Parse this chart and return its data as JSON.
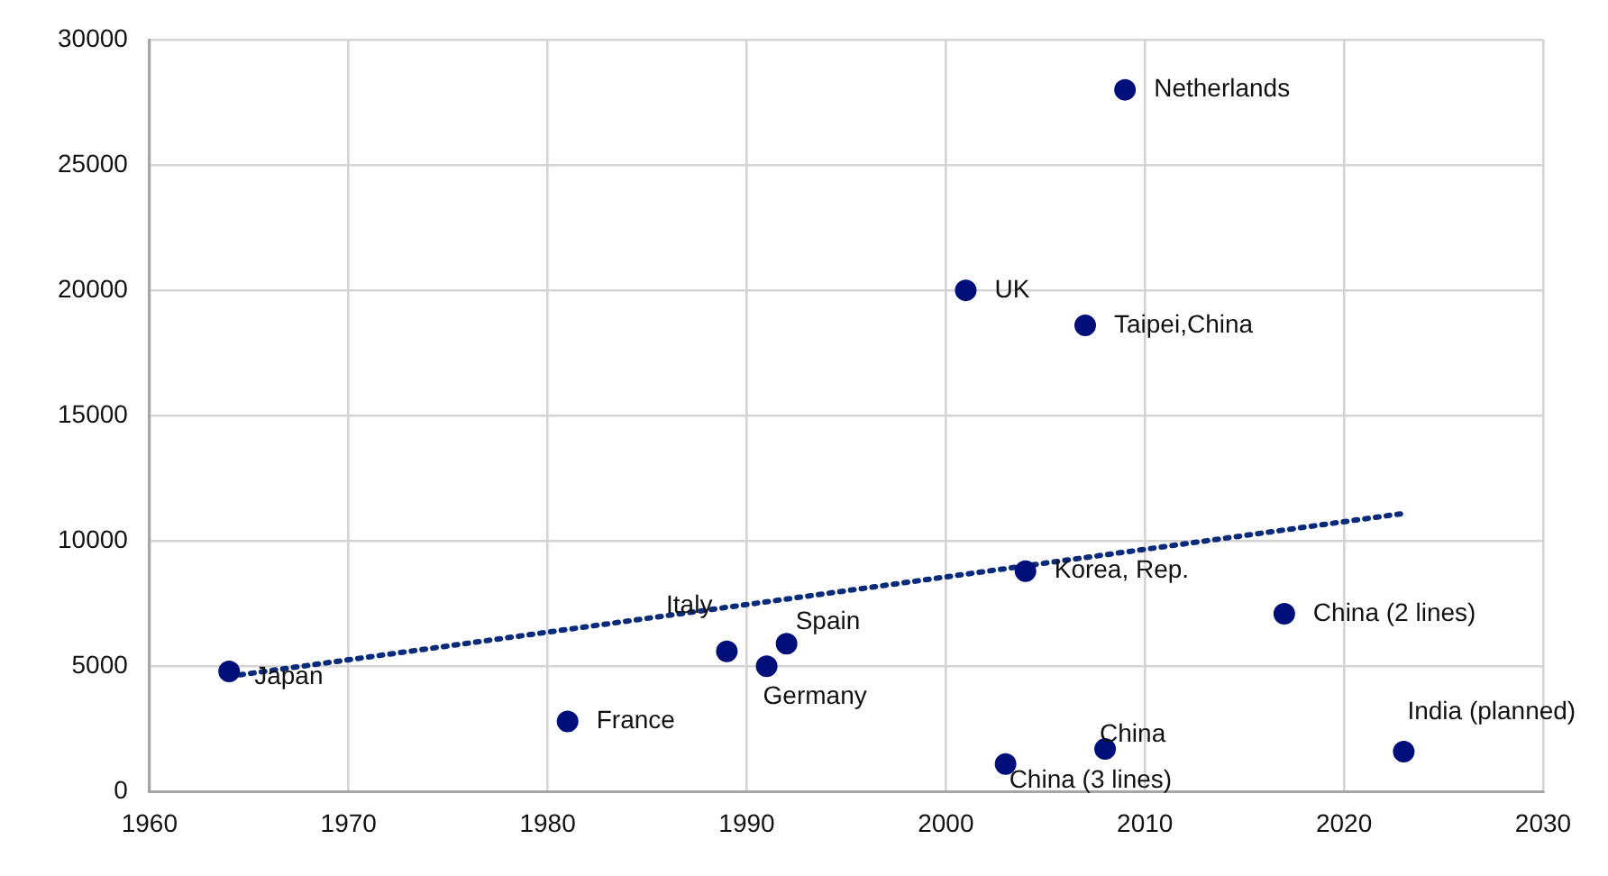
{
  "chart_data": {
    "type": "scatter",
    "x": [
      1964,
      1981,
      1989,
      1991,
      1992,
      2001,
      2004,
      2003,
      2007,
      2008,
      2009,
      2017,
      2023
    ],
    "series": [
      {
        "color": "#000f7a",
        "values": [
          4800,
          2800,
          5600,
          5000,
          5900,
          20000,
          8800,
          1100,
          18600,
          1700,
          28000,
          7100,
          1600
        ]
      },
      {
        "type": "line",
        "color": "#0a2a7a",
        "x": [
          1964,
          2023
        ],
        "values": [
          4600,
          11100
        ],
        "line_style": "dotted",
        "marker": "none"
      }
    ],
    "annotations": [
      {
        "text": "Japan",
        "x": 1964,
        "y": 4800
      },
      {
        "text": "France",
        "x": 1981,
        "y": 2800
      },
      {
        "text": "Italy",
        "x": 1989,
        "y": 5600
      },
      {
        "text": "Germany",
        "x": 1991,
        "y": 5000
      },
      {
        "text": "Spain",
        "x": 1992,
        "y": 5900
      },
      {
        "text": "UK",
        "x": 2001,
        "y": 20000
      },
      {
        "text": "Korea, Rep.",
        "x": 2004,
        "y": 8800
      },
      {
        "text": "China (3 lines)",
        "x": 2003,
        "y": 1100
      },
      {
        "text": "Taipei,China",
        "x": 2007,
        "y": 18600
      },
      {
        "text": "China",
        "x": 2008,
        "y": 1700
      },
      {
        "text": "Netherlands",
        "x": 2009,
        "y": 28000
      },
      {
        "text": "China (2 lines)",
        "x": 2017,
        "y": 7100
      },
      {
        "text": "India (planned)",
        "x": 2023,
        "y": 1600
      }
    ],
    "xlim": [
      1960,
      2030
    ],
    "xticks": [
      1960,
      1970,
      1980,
      1990,
      2000,
      2010,
      2020,
      2030
    ],
    "ylim": [
      0,
      30000
    ],
    "yticks": [
      0,
      5000,
      10000,
      15000,
      20000,
      25000,
      30000
    ],
    "grid": true,
    "legend": false,
    "marker": "circle"
  }
}
